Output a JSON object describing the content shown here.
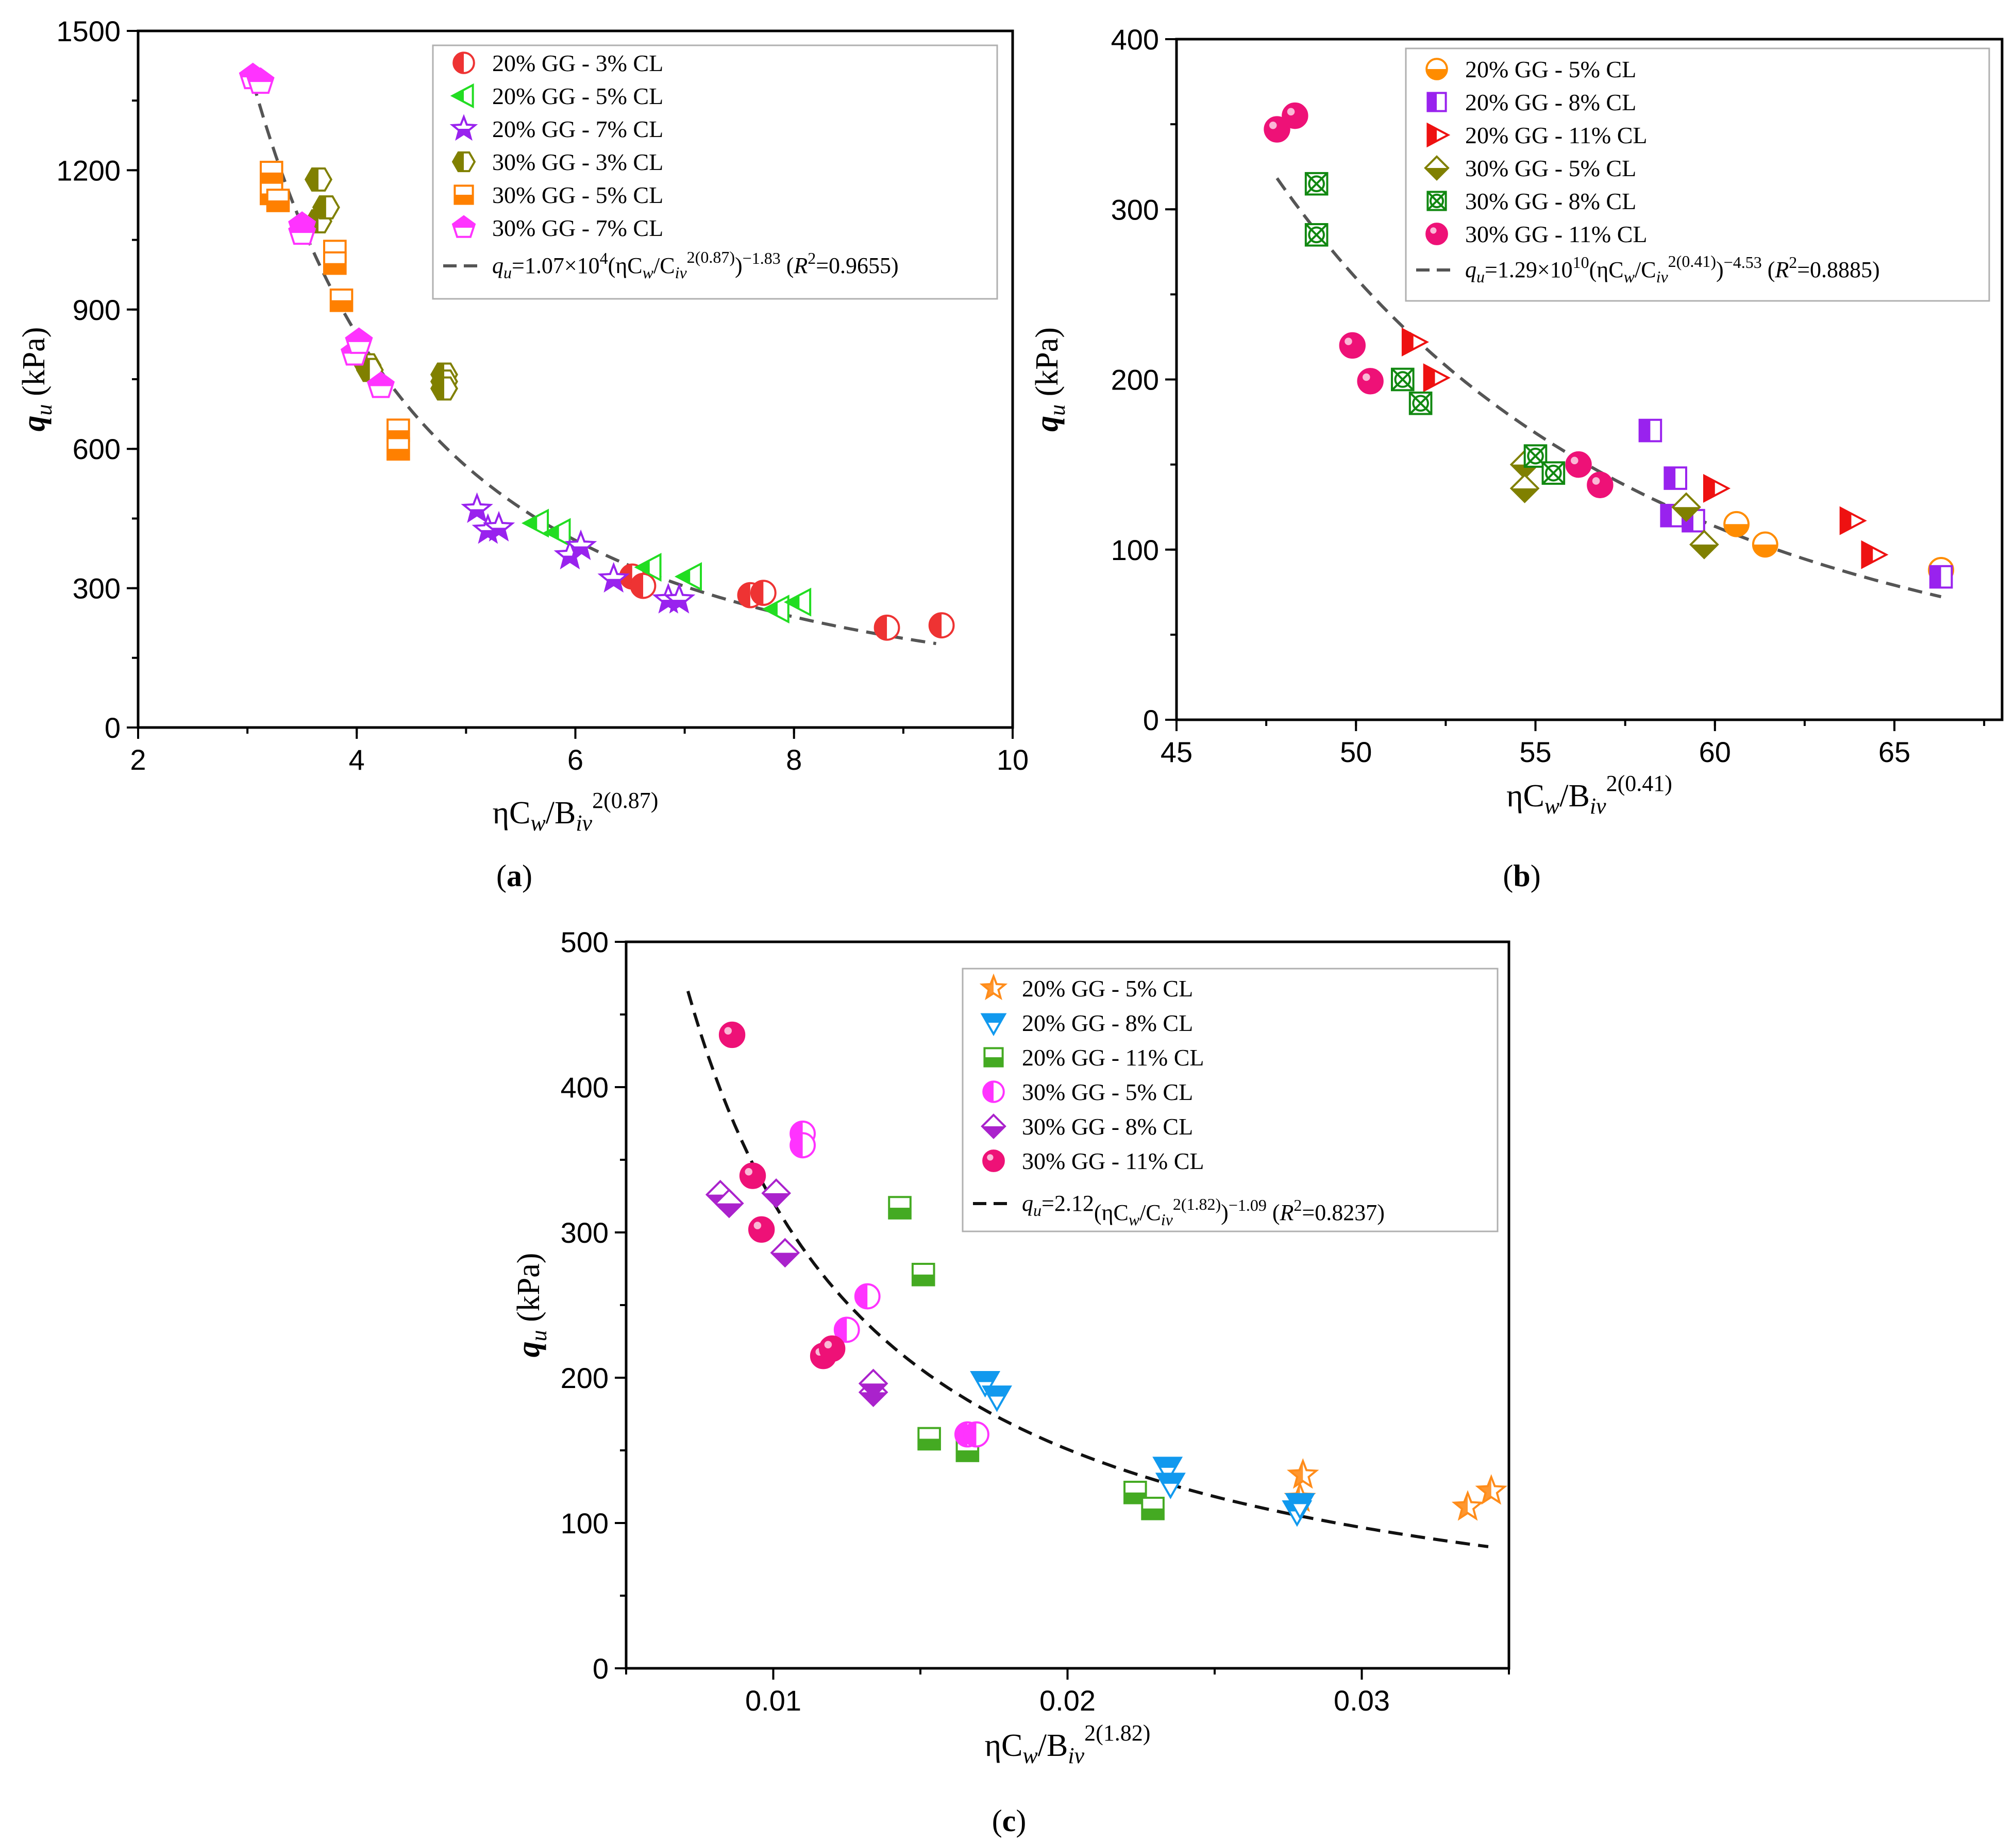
{
  "chart_data": [
    {
      "type": "scatter",
      "caption": "(a)",
      "xlabel": {
        "main": "ηC",
        "sub1": "w",
        "mid": "/B",
        "sub2": "iv",
        "sup": "2(0.87)"
      },
      "ylabel": {
        "main": "q",
        "sub": "u",
        "rest": " (kPa)"
      },
      "xlim": [
        2,
        10
      ],
      "ylim": [
        0,
        1500
      ],
      "xticks": [
        "2",
        "4",
        "6",
        "8",
        "10"
      ],
      "yticks": [
        "0",
        "300",
        "600",
        "900",
        "1200",
        "1500"
      ],
      "fit": {
        "a": 10700,
        "b": -1.83,
        "xrange": [
          3.05,
          9.3
        ],
        "label": {
          "q": "q",
          "u": "u",
          "c1": "=1.07×10",
          "e1": "4",
          "c2": "(ηC",
          "w": "w",
          "c3": "/C",
          "iv": "iv",
          "e2": "2(0.87)",
          "c4": ")",
          "e3": "−1.83",
          "c5": " (",
          "R": "R",
          "e4": "2",
          "c6": "=0.9655)"
        }
      },
      "series": [
        {
          "name": "20% GG - 3% CL",
          "color": "#ee3333",
          "marker": "circle-half-left",
          "points": [
            [
              6.52,
              325
            ],
            [
              6.62,
              305
            ],
            [
              7.6,
              285
            ],
            [
              7.72,
              290
            ],
            [
              8.85,
              215
            ],
            [
              9.35,
              220
            ]
          ]
        },
        {
          "name": "20% GG - 5% CL",
          "color": "#22dd22",
          "marker": "triangle-left",
          "points": [
            [
              5.65,
              440
            ],
            [
              5.85,
              420
            ],
            [
              6.68,
              345
            ],
            [
              7.05,
              325
            ],
            [
              7.85,
              255
            ],
            [
              8.05,
              270
            ]
          ]
        },
        {
          "name": "20% GG - 7% CL",
          "color": "#9922ee",
          "marker": "star",
          "points": [
            [
              5.1,
              470
            ],
            [
              5.2,
              425
            ],
            [
              5.3,
              430
            ],
            [
              5.95,
              370
            ],
            [
              6.05,
              390
            ],
            [
              6.35,
              320
            ],
            [
              6.85,
              275
            ],
            [
              6.95,
              275
            ]
          ]
        },
        {
          "name": "30% GG - 3% CL",
          "color": "#808000",
          "marker": "hexagon-half",
          "points": [
            [
              3.65,
              1180
            ],
            [
              3.65,
              1090
            ],
            [
              3.72,
              1120
            ],
            [
              4.1,
              780
            ],
            [
              4.12,
              770
            ],
            [
              4.8,
              760
            ],
            [
              4.8,
              745
            ],
            [
              4.8,
              730
            ]
          ]
        },
        {
          "name": "30% GG - 5% CL",
          "color": "#ff8000",
          "marker": "square-half-bottom",
          "points": [
            [
              3.22,
              1195
            ],
            [
              3.22,
              1150
            ],
            [
              3.28,
              1135
            ],
            [
              3.8,
              1025
            ],
            [
              3.8,
              1000
            ],
            [
              3.86,
              920
            ],
            [
              4.38,
              640
            ],
            [
              4.38,
              600
            ]
          ]
        },
        {
          "name": "30% GG - 7% CL",
          "color": "#ff33ff",
          "marker": "pentagon-half",
          "points": [
            [
              3.05,
              1400
            ],
            [
              3.12,
              1390
            ],
            [
              3.5,
              1080
            ],
            [
              3.5,
              1065
            ],
            [
              3.98,
              805
            ],
            [
              4.02,
              830
            ],
            [
              4.22,
              735
            ]
          ]
        }
      ]
    },
    {
      "type": "scatter",
      "caption": "(b)",
      "xlabel": {
        "main": "ηC",
        "sub1": "w",
        "mid": "/B",
        "sub2": "iv",
        "sup": "2(0.41)"
      },
      "ylabel": {
        "main": "q",
        "sub": "u",
        "rest": " (kPa)"
      },
      "xlim": [
        45,
        68
      ],
      "ylim": [
        0,
        400
      ],
      "xticks": [
        "45",
        "50",
        "55",
        "60",
        "65"
      ],
      "yticks": [
        "0",
        "100",
        "200",
        "300",
        "400"
      ],
      "fit": {
        "a": 12900000000.0,
        "b": -4.53,
        "xrange": [
          47.8,
          66.3
        ],
        "label": {
          "q": "q",
          "u": "u",
          "c1": "=1.29×10",
          "e1": "10",
          "c2": "(ηC",
          "w": "w",
          "c3": "/C",
          "iv": "iv",
          "e2": "2(0.41)",
          "c4": ")",
          "e3": "−4.53",
          "c5": " (",
          "R": "R",
          "e4": "2",
          "c6": "=0.8885)"
        }
      },
      "series": [
        {
          "name": "20% GG - 5% CL",
          "color": "#ff8c00",
          "marker": "circle-half-bottom",
          "points": [
            [
              60.6,
              115
            ],
            [
              61.4,
              103
            ],
            [
              66.3,
              88
            ]
          ]
        },
        {
          "name": "20% GG - 8% CL",
          "color": "#9922ee",
          "marker": "square-half-left",
          "points": [
            [
              58.2,
              170
            ],
            [
              58.8,
              120
            ],
            [
              58.9,
              142
            ],
            [
              59.4,
              117
            ],
            [
              66.3,
              84
            ]
          ]
        },
        {
          "name": "20% GG - 11% CL",
          "color": "#ee1111",
          "marker": "triangle-right-half",
          "points": [
            [
              51.6,
              222
            ],
            [
              52.2,
              201
            ],
            [
              60,
              136
            ],
            [
              63.8,
              117
            ],
            [
              64.4,
              97
            ]
          ]
        },
        {
          "name": "30% GG - 5% CL",
          "color": "#808000",
          "marker": "diamond-half-bottom",
          "points": [
            [
              54.7,
              150
            ],
            [
              54.7,
              136
            ],
            [
              59.2,
              125
            ],
            [
              59.7,
              103
            ]
          ]
        },
        {
          "name": "30% GG - 8% CL",
          "color": "#118811",
          "marker": "square-x",
          "points": [
            [
              48.9,
              315
            ],
            [
              48.9,
              285
            ],
            [
              51.3,
              200
            ],
            [
              51.8,
              186
            ],
            [
              55,
              155
            ],
            [
              55.5,
              145
            ]
          ]
        },
        {
          "name": "30% GG - 11% CL",
          "color": "#ee1177",
          "marker": "sphere",
          "points": [
            [
              47.8,
              347
            ],
            [
              48.3,
              355
            ],
            [
              49.9,
              220
            ],
            [
              50.4,
              199
            ],
            [
              56.2,
              150
            ],
            [
              56.8,
              138
            ]
          ]
        }
      ]
    },
    {
      "type": "scatter",
      "caption": "(c)",
      "xlabel": {
        "main": "ηC",
        "sub1": "w",
        "mid": "/B",
        "sub2": "iv",
        "sup": "2(1.82)"
      },
      "ylabel": {
        "main": "q",
        "sub": "u",
        "rest": " (kPa)"
      },
      "xlim": [
        0.005,
        0.035
      ],
      "ylim": [
        0,
        500
      ],
      "xticks": [
        "0.01",
        "0.02",
        "0.03"
      ],
      "yticks": [
        "0",
        "100",
        "200",
        "300",
        "400",
        "500"
      ],
      "fit": {
        "a": 2.12,
        "b": -1.09,
        "xrange": [
          0.0071,
          0.0343
        ],
        "label": {
          "q": "q",
          "u": "u",
          "c1": "=2.12",
          "e1": "",
          "c2": "(ηC",
          "w": "w",
          "c3": "/C",
          "iv": "iv",
          "e2": "2(1.82)",
          "c4": ")",
          "e3": "−1.09",
          "c5": " (",
          "R": "R",
          "e4": "2",
          "c6": "=0.8237)"
        }
      },
      "series": [
        {
          "name": "20% GG - 5% CL",
          "color": "#ff8c1a",
          "marker": "star-outline",
          "points": [
            [
              0.0279,
              117
            ],
            [
              0.028,
              133
            ],
            [
              0.0336,
              111
            ],
            [
              0.0344,
              122
            ]
          ]
        },
        {
          "name": "20% GG - 8% CL",
          "color": "#1199ee",
          "marker": "triangle-down-half",
          "points": [
            [
              0.0172,
              197
            ],
            [
              0.0176,
              187
            ],
            [
              0.0234,
              138
            ],
            [
              0.0235,
              127
            ],
            [
              0.0278,
              108
            ],
            [
              0.0279,
              113
            ]
          ]
        },
        {
          "name": "20% GG - 11% CL",
          "color": "#44aa22",
          "marker": "square-half-bottom",
          "points": [
            [
              0.0143,
              317
            ],
            [
              0.0151,
              271
            ],
            [
              0.0153,
              158
            ],
            [
              0.0166,
              150
            ],
            [
              0.0223,
              121
            ],
            [
              0.0229,
              110
            ]
          ]
        },
        {
          "name": "30% GG - 5% CL",
          "color": "#ff33ff",
          "marker": "circle-half-left",
          "points": [
            [
              0.011,
              368
            ],
            [
              0.011,
              360
            ],
            [
              0.0125,
              233
            ],
            [
              0.0132,
              256
            ],
            [
              0.0166,
              161
            ],
            [
              0.0169,
              161
            ]
          ]
        },
        {
          "name": "30% GG - 8% CL",
          "color": "#aa22cc",
          "marker": "diamond-half-bottom",
          "points": [
            [
              0.0082,
              326
            ],
            [
              0.0085,
              320
            ],
            [
              0.0101,
              327
            ],
            [
              0.0104,
              286
            ],
            [
              0.0134,
              190
            ],
            [
              0.0134,
              196
            ]
          ]
        },
        {
          "name": "30% GG - 11% CL",
          "color": "#ee1177",
          "marker": "sphere",
          "points": [
            [
              0.0086,
              436
            ],
            [
              0.0093,
              339
            ],
            [
              0.0096,
              302
            ],
            [
              0.0117,
              215
            ],
            [
              0.012,
              220
            ]
          ]
        }
      ]
    }
  ],
  "colors": {
    "fit_line_a": "#555555",
    "fit_line_b": "#555555",
    "fit_line_c": "#111111"
  }
}
